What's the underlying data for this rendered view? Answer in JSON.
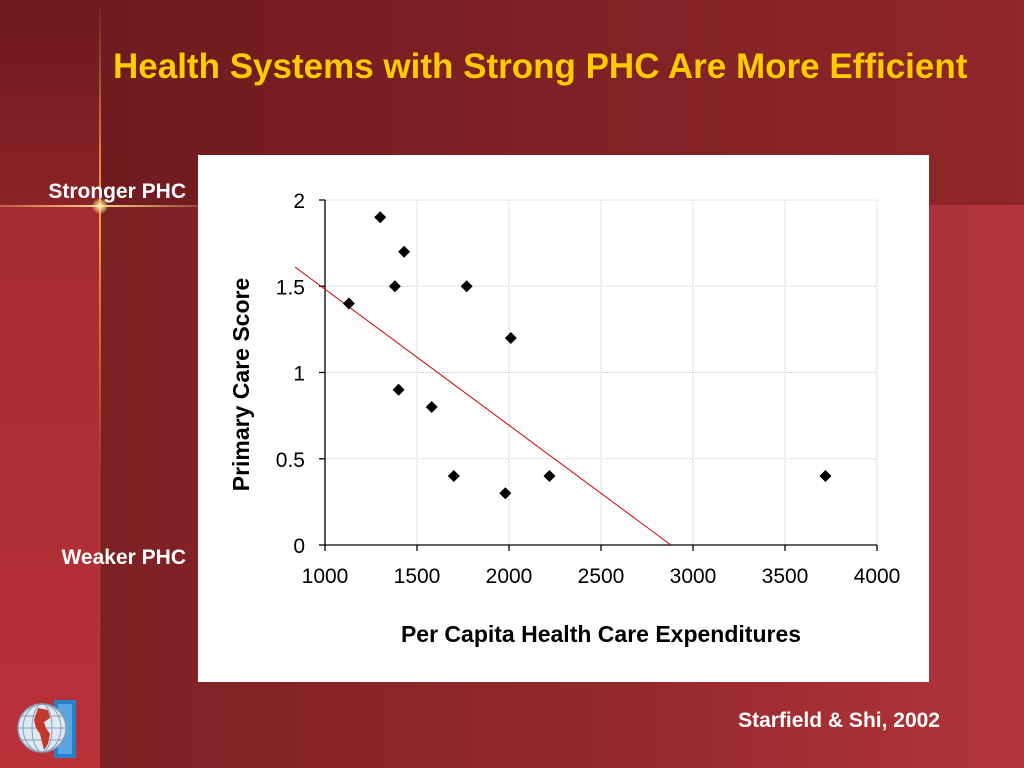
{
  "slide": {
    "title": "Health Systems with Strong PHC Are More Efficient",
    "side_label_top": "Stronger PHC",
    "side_label_bottom": "Weaker PHC",
    "citation": "Starfield & Shi, 2002",
    "title_color": "#ffcc00",
    "background_color": "#7a1f22"
  },
  "logo": {
    "icon": "globe-americas-icon"
  },
  "chart_data": {
    "type": "scatter",
    "title": "",
    "xlabel": "Per Capita Health Care Expenditures",
    "ylabel": "Primary Care Score",
    "xlim": [
      1000,
      4000
    ],
    "ylim": [
      0,
      2
    ],
    "x_ticks": [
      "1000",
      "1500",
      "2000",
      "2500",
      "3000",
      "3500",
      "4000"
    ],
    "y_ticks": [
      "0",
      "0.5",
      "1",
      "1.5",
      "2"
    ],
    "grid": true,
    "marker": "diamond",
    "marker_color": "#000000",
    "trendline": {
      "color": "#cc0000",
      "points": [
        {
          "x": 1000,
          "y": 1.6
        },
        {
          "x": 2880,
          "y": 0
        }
      ]
    },
    "series": [
      {
        "points": [
          {
            "x": 1130,
            "y": 1.4
          },
          {
            "x": 1300,
            "y": 1.9
          },
          {
            "x": 1380,
            "y": 1.5
          },
          {
            "x": 1430,
            "y": 1.7
          },
          {
            "x": 1400,
            "y": 0.9
          },
          {
            "x": 1580,
            "y": 0.8
          },
          {
            "x": 1700,
            "y": 0.4
          },
          {
            "x": 1770,
            "y": 1.5
          },
          {
            "x": 1980,
            "y": 0.3
          },
          {
            "x": 2010,
            "y": 1.2
          },
          {
            "x": 2220,
            "y": 0.4
          },
          {
            "x": 3720,
            "y": 0.4
          }
        ]
      }
    ]
  }
}
